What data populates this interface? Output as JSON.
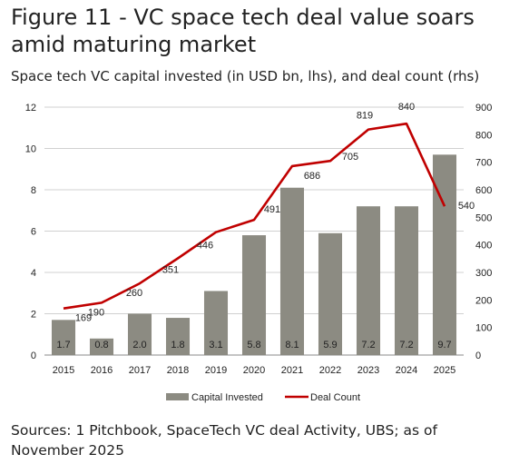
{
  "title": "Figure 11 - VC space tech deal value soars amid maturing market",
  "subtitle": "Space tech VC capital invested (in USD bn, lhs), and deal count (rhs)",
  "source": "Sources: 1 Pitchbook, SpaceTech VC deal Activity, UBS; as of November 2025",
  "colors": {
    "bar": "#8c8b82",
    "line": "#c00000"
  },
  "chart_data": {
    "type": "bar",
    "categories": [
      "2015",
      "2016",
      "2017",
      "2018",
      "2019",
      "2020",
      "2021",
      "2022",
      "2023",
      "2024",
      "2025"
    ],
    "series": [
      {
        "name": "Capital Invested",
        "type": "bar",
        "axis": "left",
        "values": [
          1.7,
          0.8,
          2.0,
          1.8,
          3.1,
          5.8,
          8.1,
          5.9,
          7.2,
          7.2,
          9.7
        ],
        "labels": [
          "1.7",
          "0.8",
          "2.0",
          "1.8",
          "3.1",
          "5.8",
          "8.1",
          "5.9",
          "7.2",
          "7.2",
          "9.7"
        ]
      },
      {
        "name": "Deal Count",
        "type": "line",
        "axis": "right",
        "values": [
          169,
          190,
          260,
          351,
          446,
          491,
          686,
          705,
          819,
          840,
          540
        ],
        "labels": [
          "169",
          "190",
          "260",
          "351",
          "446",
          "491",
          "686",
          "705",
          "819",
          "840",
          "540"
        ]
      }
    ],
    "y_left": {
      "min": 0,
      "max": 12,
      "ticks": [
        "0",
        "2",
        "4",
        "6",
        "8",
        "10",
        "12"
      ]
    },
    "y_right": {
      "min": 0,
      "max": 900,
      "ticks": [
        "0",
        "100",
        "200",
        "300",
        "400",
        "500",
        "600",
        "700",
        "800",
        "900"
      ]
    },
    "grid": true,
    "legend": "bottom"
  }
}
